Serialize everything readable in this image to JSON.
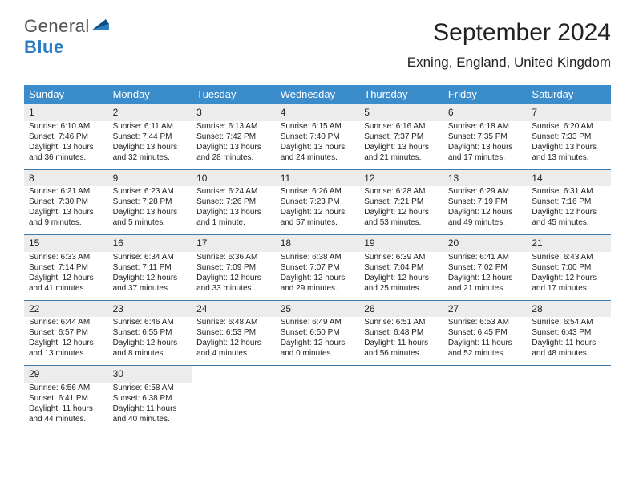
{
  "logo": {
    "text1": "General",
    "text2": "Blue",
    "brand_color": "#2b7cc2",
    "tri_color": "#0c4f87"
  },
  "header": {
    "month_title": "September 2024",
    "location": "Exning, England, United Kingdom"
  },
  "style": {
    "header_bg": "#3b8ccb",
    "daynum_bg": "#ececec",
    "sep_color": "#2a6aa5",
    "page_bg": "#ffffff",
    "text_color": "#1f1f1f",
    "header_text_color": "#ffffff",
    "header_font_size_pt": 10,
    "daynum_font_size_pt": 9,
    "body_font_size_pt": 8,
    "title_font_size_pt": 22,
    "location_font_size_pt": 13
  },
  "day_headers": [
    "Sunday",
    "Monday",
    "Tuesday",
    "Wednesday",
    "Thursday",
    "Friday",
    "Saturday"
  ],
  "weeks": [
    [
      {
        "n": "1",
        "sr": "Sunrise: 6:10 AM",
        "ss": "Sunset: 7:46 PM",
        "d1": "Daylight: 13 hours",
        "d2": "and 36 minutes."
      },
      {
        "n": "2",
        "sr": "Sunrise: 6:11 AM",
        "ss": "Sunset: 7:44 PM",
        "d1": "Daylight: 13 hours",
        "d2": "and 32 minutes."
      },
      {
        "n": "3",
        "sr": "Sunrise: 6:13 AM",
        "ss": "Sunset: 7:42 PM",
        "d1": "Daylight: 13 hours",
        "d2": "and 28 minutes."
      },
      {
        "n": "4",
        "sr": "Sunrise: 6:15 AM",
        "ss": "Sunset: 7:40 PM",
        "d1": "Daylight: 13 hours",
        "d2": "and 24 minutes."
      },
      {
        "n": "5",
        "sr": "Sunrise: 6:16 AM",
        "ss": "Sunset: 7:37 PM",
        "d1": "Daylight: 13 hours",
        "d2": "and 21 minutes."
      },
      {
        "n": "6",
        "sr": "Sunrise: 6:18 AM",
        "ss": "Sunset: 7:35 PM",
        "d1": "Daylight: 13 hours",
        "d2": "and 17 minutes."
      },
      {
        "n": "7",
        "sr": "Sunrise: 6:20 AM",
        "ss": "Sunset: 7:33 PM",
        "d1": "Daylight: 13 hours",
        "d2": "and 13 minutes."
      }
    ],
    [
      {
        "n": "8",
        "sr": "Sunrise: 6:21 AM",
        "ss": "Sunset: 7:30 PM",
        "d1": "Daylight: 13 hours",
        "d2": "and 9 minutes."
      },
      {
        "n": "9",
        "sr": "Sunrise: 6:23 AM",
        "ss": "Sunset: 7:28 PM",
        "d1": "Daylight: 13 hours",
        "d2": "and 5 minutes."
      },
      {
        "n": "10",
        "sr": "Sunrise: 6:24 AM",
        "ss": "Sunset: 7:26 PM",
        "d1": "Daylight: 13 hours",
        "d2": "and 1 minute."
      },
      {
        "n": "11",
        "sr": "Sunrise: 6:26 AM",
        "ss": "Sunset: 7:23 PM",
        "d1": "Daylight: 12 hours",
        "d2": "and 57 minutes."
      },
      {
        "n": "12",
        "sr": "Sunrise: 6:28 AM",
        "ss": "Sunset: 7:21 PM",
        "d1": "Daylight: 12 hours",
        "d2": "and 53 minutes."
      },
      {
        "n": "13",
        "sr": "Sunrise: 6:29 AM",
        "ss": "Sunset: 7:19 PM",
        "d1": "Daylight: 12 hours",
        "d2": "and 49 minutes."
      },
      {
        "n": "14",
        "sr": "Sunrise: 6:31 AM",
        "ss": "Sunset: 7:16 PM",
        "d1": "Daylight: 12 hours",
        "d2": "and 45 minutes."
      }
    ],
    [
      {
        "n": "15",
        "sr": "Sunrise: 6:33 AM",
        "ss": "Sunset: 7:14 PM",
        "d1": "Daylight: 12 hours",
        "d2": "and 41 minutes."
      },
      {
        "n": "16",
        "sr": "Sunrise: 6:34 AM",
        "ss": "Sunset: 7:11 PM",
        "d1": "Daylight: 12 hours",
        "d2": "and 37 minutes."
      },
      {
        "n": "17",
        "sr": "Sunrise: 6:36 AM",
        "ss": "Sunset: 7:09 PM",
        "d1": "Daylight: 12 hours",
        "d2": "and 33 minutes."
      },
      {
        "n": "18",
        "sr": "Sunrise: 6:38 AM",
        "ss": "Sunset: 7:07 PM",
        "d1": "Daylight: 12 hours",
        "d2": "and 29 minutes."
      },
      {
        "n": "19",
        "sr": "Sunrise: 6:39 AM",
        "ss": "Sunset: 7:04 PM",
        "d1": "Daylight: 12 hours",
        "d2": "and 25 minutes."
      },
      {
        "n": "20",
        "sr": "Sunrise: 6:41 AM",
        "ss": "Sunset: 7:02 PM",
        "d1": "Daylight: 12 hours",
        "d2": "and 21 minutes."
      },
      {
        "n": "21",
        "sr": "Sunrise: 6:43 AM",
        "ss": "Sunset: 7:00 PM",
        "d1": "Daylight: 12 hours",
        "d2": "and 17 minutes."
      }
    ],
    [
      {
        "n": "22",
        "sr": "Sunrise: 6:44 AM",
        "ss": "Sunset: 6:57 PM",
        "d1": "Daylight: 12 hours",
        "d2": "and 13 minutes."
      },
      {
        "n": "23",
        "sr": "Sunrise: 6:46 AM",
        "ss": "Sunset: 6:55 PM",
        "d1": "Daylight: 12 hours",
        "d2": "and 8 minutes."
      },
      {
        "n": "24",
        "sr": "Sunrise: 6:48 AM",
        "ss": "Sunset: 6:53 PM",
        "d1": "Daylight: 12 hours",
        "d2": "and 4 minutes."
      },
      {
        "n": "25",
        "sr": "Sunrise: 6:49 AM",
        "ss": "Sunset: 6:50 PM",
        "d1": "Daylight: 12 hours",
        "d2": "and 0 minutes."
      },
      {
        "n": "26",
        "sr": "Sunrise: 6:51 AM",
        "ss": "Sunset: 6:48 PM",
        "d1": "Daylight: 11 hours",
        "d2": "and 56 minutes."
      },
      {
        "n": "27",
        "sr": "Sunrise: 6:53 AM",
        "ss": "Sunset: 6:45 PM",
        "d1": "Daylight: 11 hours",
        "d2": "and 52 minutes."
      },
      {
        "n": "28",
        "sr": "Sunrise: 6:54 AM",
        "ss": "Sunset: 6:43 PM",
        "d1": "Daylight: 11 hours",
        "d2": "and 48 minutes."
      }
    ],
    [
      {
        "n": "29",
        "sr": "Sunrise: 6:56 AM",
        "ss": "Sunset: 6:41 PM",
        "d1": "Daylight: 11 hours",
        "d2": "and 44 minutes."
      },
      {
        "n": "30",
        "sr": "Sunrise: 6:58 AM",
        "ss": "Sunset: 6:38 PM",
        "d1": "Daylight: 11 hours",
        "d2": "and 40 minutes."
      },
      null,
      null,
      null,
      null,
      null
    ]
  ]
}
